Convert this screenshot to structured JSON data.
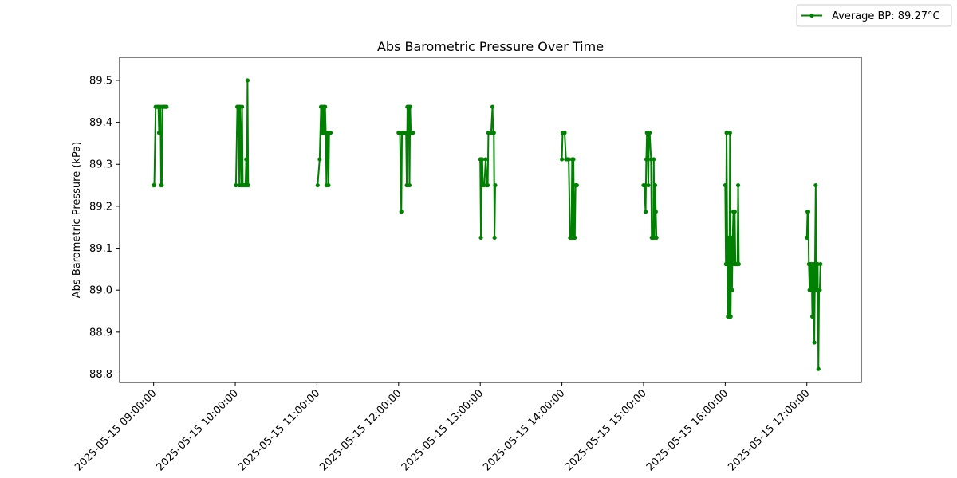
{
  "chart_data": {
    "type": "line",
    "title": "Abs Barometric Pressure Over Time",
    "xlabel": "",
    "ylabel": "Abs Barometric Pressure (kPa)",
    "ylim": [
      88.78,
      89.555
    ],
    "yticks": [
      88.8,
      88.9,
      89.0,
      89.1,
      89.2,
      89.3,
      89.4,
      89.5
    ],
    "xlim": [
      "2025-05-15 08:35:00",
      "2025-05-15 17:40:00"
    ],
    "xticks": [
      "2025-05-15 09:00:00",
      "2025-05-15 10:00:00",
      "2025-05-15 11:00:00",
      "2025-05-15 12:00:00",
      "2025-05-15 13:00:00",
      "2025-05-15 14:00:00",
      "2025-05-15 15:00:00",
      "2025-05-15 16:00:00",
      "2025-05-15 17:00:00"
    ],
    "grid": false,
    "legend_position": "top-right",
    "series": [
      {
        "name": "Average BP: 89.27°C",
        "color": "#008000",
        "marker": "circle",
        "points": [
          [
            "2025-05-15 09:00:00",
            89.25
          ],
          [
            "2025-05-15 09:00:30",
            89.25
          ],
          [
            "2025-05-15 09:01:30",
            89.437
          ],
          [
            "2025-05-15 09:02:30",
            89.437
          ],
          [
            "2025-05-15 09:03:30",
            89.437
          ],
          [
            "2025-05-15 09:04:00",
            89.375
          ],
          [
            "2025-05-15 09:04:30",
            89.375
          ],
          [
            "2025-05-15 09:05:00",
            89.437
          ],
          [
            "2025-05-15 09:05:30",
            89.25
          ],
          [
            "2025-05-15 09:06:00",
            89.25
          ],
          [
            "2025-05-15 09:06:30",
            89.437
          ],
          [
            "2025-05-15 09:07:30",
            89.437
          ],
          [
            "2025-05-15 09:08:30",
            89.437
          ],
          [
            "2025-05-15 09:09:30",
            89.437
          ],
          [
            "2025-05-15 10:00:30",
            89.25
          ],
          [
            "2025-05-15 10:01:30",
            89.437
          ],
          [
            "2025-05-15 10:02:00",
            89.375
          ],
          [
            "2025-05-15 10:02:30",
            89.437
          ],
          [
            "2025-05-15 10:03:00",
            89.25
          ],
          [
            "2025-05-15 10:03:30",
            89.437
          ],
          [
            "2025-05-15 10:04:30",
            89.25
          ],
          [
            "2025-05-15 10:05:00",
            89.437
          ],
          [
            "2025-05-15 10:05:30",
            89.25
          ],
          [
            "2025-05-15 10:06:30",
            89.25
          ],
          [
            "2025-05-15 10:07:30",
            89.25
          ],
          [
            "2025-05-15 10:08:00",
            89.312
          ],
          [
            "2025-05-15 10:08:30",
            89.25
          ],
          [
            "2025-05-15 10:09:00",
            89.5
          ],
          [
            "2025-05-15 10:09:30",
            89.25
          ],
          [
            "2025-05-15 11:00:30",
            89.25
          ],
          [
            "2025-05-15 11:02:00",
            89.312
          ],
          [
            "2025-05-15 11:03:00",
            89.437
          ],
          [
            "2025-05-15 11:03:30",
            89.375
          ],
          [
            "2025-05-15 11:04:00",
            89.437
          ],
          [
            "2025-05-15 11:04:30",
            89.375
          ],
          [
            "2025-05-15 11:05:00",
            89.437
          ],
          [
            "2025-05-15 11:05:30",
            89.375
          ],
          [
            "2025-05-15 11:06:00",
            89.437
          ],
          [
            "2025-05-15 11:06:30",
            89.375
          ],
          [
            "2025-05-15 11:07:00",
            89.25
          ],
          [
            "2025-05-15 11:07:30",
            89.375
          ],
          [
            "2025-05-15 11:08:00",
            89.375
          ],
          [
            "2025-05-15 11:08:30",
            89.25
          ],
          [
            "2025-05-15 11:09:00",
            89.375
          ],
          [
            "2025-05-15 11:09:30",
            89.375
          ],
          [
            "2025-05-15 11:10:00",
            89.375
          ],
          [
            "2025-05-15 12:00:00",
            89.375
          ],
          [
            "2025-05-15 12:01:00",
            89.375
          ],
          [
            "2025-05-15 12:02:00",
            89.187
          ],
          [
            "2025-05-15 12:02:30",
            89.375
          ],
          [
            "2025-05-15 12:03:30",
            89.375
          ],
          [
            "2025-05-15 12:04:30",
            89.375
          ],
          [
            "2025-05-15 12:05:30",
            89.375
          ],
          [
            "2025-05-15 12:06:00",
            89.25
          ],
          [
            "2025-05-15 12:06:30",
            89.437
          ],
          [
            "2025-05-15 12:07:00",
            89.375
          ],
          [
            "2025-05-15 12:07:30",
            89.437
          ],
          [
            "2025-05-15 12:08:00",
            89.25
          ],
          [
            "2025-05-15 12:08:30",
            89.437
          ],
          [
            "2025-05-15 12:09:00",
            89.375
          ],
          [
            "2025-05-15 12:09:30",
            89.375
          ],
          [
            "2025-05-15 12:10:00",
            89.375
          ],
          [
            "2025-05-15 12:10:30",
            89.375
          ],
          [
            "2025-05-15 13:00:00",
            89.312
          ],
          [
            "2025-05-15 13:00:30",
            89.125
          ],
          [
            "2025-05-15 13:01:00",
            89.312
          ],
          [
            "2025-05-15 13:01:30",
            89.312
          ],
          [
            "2025-05-15 13:02:00",
            89.25
          ],
          [
            "2025-05-15 13:03:00",
            89.25
          ],
          [
            "2025-05-15 13:04:00",
            89.312
          ],
          [
            "2025-05-15 13:05:00",
            89.25
          ],
          [
            "2025-05-15 13:05:30",
            89.25
          ],
          [
            "2025-05-15 13:06:00",
            89.375
          ],
          [
            "2025-05-15 13:07:00",
            89.375
          ],
          [
            "2025-05-15 13:08:00",
            89.375
          ],
          [
            "2025-05-15 13:09:00",
            89.437
          ],
          [
            "2025-05-15 13:09:30",
            89.375
          ],
          [
            "2025-05-15 13:10:00",
            89.375
          ],
          [
            "2025-05-15 13:10:30",
            89.125
          ],
          [
            "2025-05-15 13:11:00",
            89.25
          ],
          [
            "2025-05-15 14:00:00",
            89.312
          ],
          [
            "2025-05-15 14:00:30",
            89.375
          ],
          [
            "2025-05-15 14:01:00",
            89.375
          ],
          [
            "2025-05-15 14:01:30",
            89.375
          ],
          [
            "2025-05-15 14:02:00",
            89.375
          ],
          [
            "2025-05-15 14:03:00",
            89.312
          ],
          [
            "2025-05-15 14:04:00",
            89.312
          ],
          [
            "2025-05-15 14:05:00",
            89.312
          ],
          [
            "2025-05-15 14:06:00",
            89.125
          ],
          [
            "2025-05-15 14:07:00",
            89.125
          ],
          [
            "2025-05-15 14:07:30",
            89.312
          ],
          [
            "2025-05-15 14:08:00",
            89.125
          ],
          [
            "2025-05-15 14:08:30",
            89.312
          ],
          [
            "2025-05-15 14:09:00",
            89.125
          ],
          [
            "2025-05-15 14:09:30",
            89.125
          ],
          [
            "2025-05-15 14:10:00",
            89.25
          ],
          [
            "2025-05-15 14:10:30",
            89.25
          ],
          [
            "2025-05-15 14:11:00",
            89.25
          ],
          [
            "2025-05-15 15:00:00",
            89.25
          ],
          [
            "2025-05-15 15:00:30",
            89.25
          ],
          [
            "2025-05-15 15:01:30",
            89.187
          ],
          [
            "2025-05-15 15:02:00",
            89.312
          ],
          [
            "2025-05-15 15:02:30",
            89.375
          ],
          [
            "2025-05-15 15:03:00",
            89.375
          ],
          [
            "2025-05-15 15:03:30",
            89.25
          ],
          [
            "2025-05-15 15:04:00",
            89.375
          ],
          [
            "2025-05-15 15:04:30",
            89.375
          ],
          [
            "2025-05-15 15:05:30",
            89.312
          ],
          [
            "2025-05-15 15:06:00",
            89.125
          ],
          [
            "2025-05-15 15:06:30",
            89.125
          ],
          [
            "2025-05-15 15:07:00",
            89.125
          ],
          [
            "2025-05-15 15:07:30",
            89.312
          ],
          [
            "2025-05-15 15:08:00",
            89.125
          ],
          [
            "2025-05-15 15:08:30",
            89.25
          ],
          [
            "2025-05-15 15:09:00",
            89.187
          ],
          [
            "2025-05-15 15:09:30",
            89.125
          ],
          [
            "2025-05-15 16:00:00",
            89.25
          ],
          [
            "2025-05-15 16:00:30",
            89.062
          ],
          [
            "2025-05-15 16:01:00",
            89.375
          ],
          [
            "2025-05-15 16:01:30",
            89.125
          ],
          [
            "2025-05-15 16:02:00",
            88.937
          ],
          [
            "2025-05-15 16:02:30",
            89.125
          ],
          [
            "2025-05-15 16:03:00",
            88.937
          ],
          [
            "2025-05-15 16:03:30",
            89.375
          ],
          [
            "2025-05-15 16:04:00",
            88.937
          ],
          [
            "2025-05-15 16:04:30",
            89.125
          ],
          [
            "2025-05-15 16:05:00",
            89.0
          ],
          [
            "2025-05-15 16:05:30",
            89.125
          ],
          [
            "2025-05-15 16:06:00",
            89.187
          ],
          [
            "2025-05-15 16:06:30",
            89.062
          ],
          [
            "2025-05-15 16:07:00",
            89.187
          ],
          [
            "2025-05-15 16:07:30",
            89.062
          ],
          [
            "2025-05-15 16:08:00",
            89.062
          ],
          [
            "2025-05-15 16:08:30",
            89.062
          ],
          [
            "2025-05-15 16:09:00",
            89.062
          ],
          [
            "2025-05-15 16:09:30",
            89.25
          ],
          [
            "2025-05-15 16:10:00",
            89.062
          ],
          [
            "2025-05-15 17:00:00",
            89.125
          ],
          [
            "2025-05-15 17:00:30",
            89.187
          ],
          [
            "2025-05-15 17:01:00",
            89.187
          ],
          [
            "2025-05-15 17:01:30",
            89.062
          ],
          [
            "2025-05-15 17:02:00",
            89.0
          ],
          [
            "2025-05-15 17:02:30",
            89.062
          ],
          [
            "2025-05-15 17:03:00",
            89.0
          ],
          [
            "2025-05-15 17:03:30",
            89.062
          ],
          [
            "2025-05-15 17:04:00",
            88.937
          ],
          [
            "2025-05-15 17:04:30",
            89.062
          ],
          [
            "2025-05-15 17:05:00",
            89.062
          ],
          [
            "2025-05-15 17:05:30",
            88.875
          ],
          [
            "2025-05-15 17:06:00",
            89.062
          ],
          [
            "2025-05-15 17:06:30",
            89.25
          ],
          [
            "2025-05-15 17:07:00",
            89.0
          ],
          [
            "2025-05-15 17:07:30",
            89.062
          ],
          [
            "2025-05-15 17:08:00",
            89.062
          ],
          [
            "2025-05-15 17:08:30",
            88.812
          ],
          [
            "2025-05-15 17:09:00",
            89.0
          ],
          [
            "2025-05-15 17:09:30",
            89.0
          ],
          [
            "2025-05-15 17:10:00",
            89.062
          ]
        ]
      }
    ]
  }
}
